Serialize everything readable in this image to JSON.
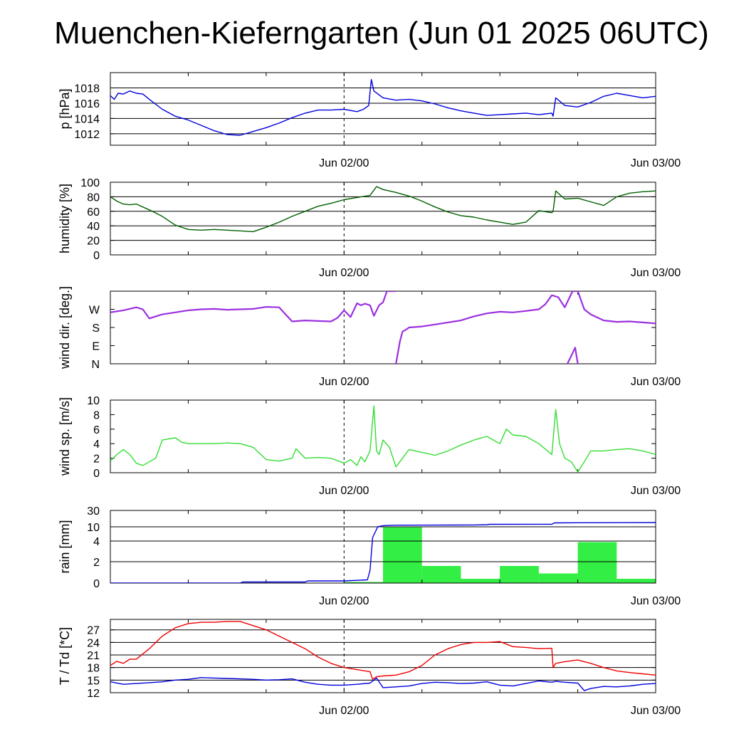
{
  "title": "Muenchen-Kieferngarten (Jun 01 2025 06UTC)",
  "colors": {
    "pressure": "#0000dd",
    "humidity": "#005f00",
    "wind_dir": "#9b30e0",
    "wind_speed": "#33dd33",
    "rain_bar": "#33ee44",
    "rain_cum": "#0000dd",
    "temperature": "#ee0000",
    "dewpoint": "#0000dd"
  },
  "chart_data": [
    {
      "id": "pressure",
      "type": "line",
      "ylabel": "p [hPa]",
      "ylim": [
        1010.5,
        1020
      ],
      "yticks": [
        1012,
        1014,
        1016,
        1018
      ],
      "ytick_labels": [
        "1012",
        "1014",
        "1016",
        "1018"
      ],
      "xlim": [
        0,
        42
      ],
      "xticks": [
        18,
        42
      ],
      "xtick_labels": [
        "Jun 02/00",
        "Jun 03/00"
      ],
      "grid": true,
      "series": [
        {
          "color_key": "pressure",
          "x": [
            0,
            0.3,
            0.6,
            1,
            1.5,
            2,
            2.5,
            3,
            4,
            5,
            6,
            7,
            8,
            9,
            10,
            11,
            12,
            13,
            14,
            15,
            16,
            17,
            18,
            19,
            19.5,
            19.9,
            20.1,
            20.3,
            21,
            22,
            23,
            24,
            25,
            26,
            27,
            28,
            29,
            30,
            31,
            32,
            33,
            34,
            34.1,
            34.3,
            35,
            36,
            37,
            38,
            39,
            40,
            41,
            42
          ],
          "y": [
            1017,
            1016.5,
            1017.3,
            1017.2,
            1017.6,
            1017.3,
            1017.2,
            1016.5,
            1015.2,
            1014.3,
            1013.8,
            1013.1,
            1012.4,
            1011.9,
            1011.8,
            1012.3,
            1012.8,
            1013.4,
            1014.1,
            1014.7,
            1015.1,
            1015.1,
            1015.2,
            1014.9,
            1015.2,
            1015.7,
            1019.1,
            1017.6,
            1016.7,
            1016.4,
            1016.5,
            1016.3,
            1015.9,
            1015.4,
            1015,
            1014.7,
            1014.4,
            1014.5,
            1014.6,
            1014.7,
            1014.5,
            1014.7,
            1014.3,
            1016.7,
            1015.7,
            1015.5,
            1016.1,
            1016.9,
            1017.3,
            1017,
            1016.7,
            1016.9
          ]
        }
      ]
    },
    {
      "id": "humidity",
      "type": "line",
      "ylabel": "humidity [%]",
      "ylim": [
        0,
        100
      ],
      "yticks": [
        0,
        20,
        40,
        60,
        80,
        100
      ],
      "ytick_labels": [
        "0",
        "20",
        "40",
        "60",
        "80",
        "100"
      ],
      "xlim": [
        0,
        42
      ],
      "xticks": [
        18,
        42
      ],
      "xtick_labels": [
        "Jun 02/00",
        "Jun 03/00"
      ],
      "grid": true,
      "series": [
        {
          "color_key": "humidity",
          "x": [
            0,
            0.5,
            1,
            1.5,
            2,
            3,
            4,
            5,
            6,
            7,
            8,
            9,
            10,
            11,
            12,
            13,
            14,
            15,
            16,
            17,
            18,
            19,
            20,
            20.5,
            21,
            22,
            23,
            24,
            25,
            26,
            27,
            28,
            29,
            30,
            31,
            32,
            33,
            34,
            34.1,
            34.3,
            35,
            36,
            37,
            38,
            39,
            40,
            41,
            42
          ],
          "y": [
            80,
            74,
            70,
            69,
            70,
            62,
            53,
            41,
            35,
            34,
            35,
            34,
            33,
            32,
            38,
            45,
            53,
            60,
            67,
            71,
            76,
            79,
            82,
            94,
            90,
            86,
            81,
            74,
            66,
            59,
            54,
            52,
            48,
            45,
            42,
            45,
            61,
            58,
            60,
            88,
            77,
            78,
            73,
            68,
            80,
            85,
            87,
            88
          ]
        }
      ]
    },
    {
      "id": "wind_direction",
      "type": "scatter",
      "ylabel": "wind dir. [deg.]",
      "ylim": [
        0,
        360
      ],
      "yticks": [
        0,
        90,
        180,
        270
      ],
      "ytick_labels": [
        "N",
        "E",
        "S",
        "W"
      ],
      "xlim": [
        0,
        42
      ],
      "xticks": [
        18,
        42
      ],
      "xtick_labels": [
        "Jun 02/00",
        "Jun 03/00"
      ],
      "grid": false,
      "series": [
        {
          "color_key": "wind_dir",
          "x": [
            0,
            1,
            2,
            2.5,
            3,
            4,
            5,
            6,
            7,
            8,
            9,
            10,
            11,
            12,
            13,
            14,
            15,
            16,
            17,
            17.5,
            18,
            18.5,
            19,
            19.3,
            19.6,
            20,
            20.3,
            20.7,
            21,
            21.3,
            21.7,
            22
          ],
          "y": [
            255,
            265,
            280,
            270,
            225,
            245,
            255,
            265,
            270,
            272,
            268,
            270,
            272,
            282,
            280,
            210,
            215,
            212,
            210,
            228,
            265,
            232,
            300,
            290,
            298,
            290,
            238,
            290,
            305,
            360,
            360,
            360
          ]
        },
        {
          "color_key": "wind_dir",
          "x": [
            22,
            22.3,
            22.5,
            22.8,
            23,
            24,
            25,
            26,
            27,
            28,
            29,
            30,
            31,
            32,
            33,
            33.5,
            34,
            34.5,
            35,
            35.6,
            36,
            36.5,
            37,
            38,
            39,
            40,
            41,
            42
          ],
          "y": [
            0,
            110,
            160,
            170,
            180,
            185,
            195,
            205,
            215,
            235,
            250,
            258,
            255,
            262,
            270,
            295,
            340,
            330,
            280,
            360,
            360,
            270,
            245,
            215,
            208,
            210,
            205,
            200
          ]
        },
        {
          "color_key": "wind_dir",
          "x": [
            35.2,
            35.5,
            35.8,
            36
          ],
          "y": [
            0,
            40,
            80,
            0
          ]
        }
      ]
    },
    {
      "id": "wind_speed",
      "type": "line",
      "ylabel": "wind sp. [m/s]",
      "ylim": [
        0,
        10
      ],
      "yticks": [
        0,
        2,
        4,
        6,
        8,
        10
      ],
      "ytick_labels": [
        "0",
        "2",
        "4",
        "6",
        "8",
        "10"
      ],
      "xlim": [
        0,
        42
      ],
      "xticks": [
        18,
        42
      ],
      "xtick_labels": [
        "Jun 02/00",
        "Jun 03/00"
      ],
      "grid": false,
      "series": [
        {
          "color_key": "wind_speed",
          "x": [
            0,
            0.5,
            1,
            1.5,
            2,
            2.5,
            3,
            3.5,
            4,
            5,
            5.5,
            6,
            7,
            8,
            9,
            10,
            11,
            12,
            13,
            14,
            14.3,
            15,
            16,
            17,
            18,
            18.5,
            19,
            19.3,
            19.6,
            20,
            20.3,
            20.5,
            20.7,
            21,
            21.5,
            22,
            22.5,
            23,
            23.5,
            24,
            25,
            26,
            27,
            28,
            29,
            30,
            30.5,
            31,
            32,
            33,
            34,
            34.3,
            34.6,
            35,
            35.5,
            36,
            36.5,
            37,
            38,
            39,
            40,
            41,
            42
          ],
          "y": [
            1.6,
            2.5,
            3.2,
            2.5,
            1.3,
            1.0,
            1.5,
            2.0,
            4.5,
            4.8,
            4.2,
            4.0,
            4.0,
            4.0,
            4.1,
            4.0,
            3.5,
            1.8,
            1.6,
            2.0,
            3.3,
            2.0,
            2.1,
            2.0,
            1.3,
            1.8,
            1.0,
            2.2,
            1.5,
            3.0,
            9.2,
            3.0,
            2.5,
            4.5,
            3.5,
            0.8,
            2.0,
            3.2,
            3.0,
            2.8,
            2.4,
            3.0,
            3.8,
            4.5,
            5.0,
            4.0,
            6.0,
            5.2,
            5.0,
            4.0,
            2.5,
            8.7,
            4.0,
            2.0,
            1.5,
            0.1,
            1.5,
            3.0,
            3.0,
            3.2,
            3.3,
            3.0,
            2.5
          ]
        }
      ]
    },
    {
      "id": "rain",
      "type": "bar",
      "ylabel": "rain [mm]",
      "yscale": "custom",
      "ytick_values": [
        0,
        2,
        4,
        10,
        30
      ],
      "ytick_labels": [
        "0",
        "2",
        "4",
        "10",
        "30"
      ],
      "xlim": [
        0,
        42
      ],
      "xticks": [
        18,
        42
      ],
      "xtick_labels": [
        "Jun 02/00",
        "Jun 03/00"
      ],
      "grid": true,
      "bars": {
        "color_key": "rain_bar",
        "x_start": [
          18,
          21,
          24,
          27,
          30,
          33,
          36,
          39
        ],
        "x_end": [
          21,
          24,
          27,
          30,
          33,
          36,
          39,
          42
        ],
        "values": [
          0.1,
          9.8,
          1.6,
          0.4,
          1.6,
          0.9,
          3.9,
          0.4
        ]
      },
      "series": [
        {
          "color_key": "rain_cum",
          "x": [
            0,
            10,
            10.2,
            15,
            15.2,
            18,
            19.8,
            20,
            20.2,
            20.6,
            21,
            21.5,
            22,
            25,
            28,
            29,
            29.2,
            34,
            34.2,
            36,
            42
          ],
          "y": [
            0,
            0,
            0.1,
            0.1,
            0.2,
            0.2,
            0.3,
            1.2,
            5.5,
            10.2,
            11.4,
            11.8,
            12.0,
            12.1,
            12.3,
            12.6,
            13.0,
            13.1,
            14.8,
            15.0,
            15.2
          ]
        }
      ]
    },
    {
      "id": "temperature",
      "type": "line",
      "ylabel": "T / Td [*C]",
      "ylim": [
        12,
        29.5
      ],
      "yticks": [
        12,
        15,
        18,
        21,
        24,
        27
      ],
      "ytick_labels": [
        "12",
        "15",
        "18",
        "21",
        "24",
        "27"
      ],
      "xlim": [
        0,
        42
      ],
      "xticks": [
        18,
        42
      ],
      "xtick_labels": [
        "Jun 02/00",
        "Jun 03/00"
      ],
      "grid": true,
      "series": [
        {
          "name": "T",
          "color_key": "temperature",
          "x": [
            0,
            0.5,
            1,
            1.5,
            2,
            3,
            4,
            5,
            6,
            7,
            8,
            9,
            10,
            11,
            12,
            13,
            14,
            15,
            16,
            17,
            18,
            19,
            20,
            20.2,
            20.5,
            21,
            22,
            23,
            24,
            25,
            26,
            27,
            28,
            29,
            30,
            31,
            32,
            33,
            34,
            34.1,
            34.3,
            35,
            36,
            37,
            38,
            39,
            40,
            41,
            42
          ],
          "y": [
            18.5,
            19.5,
            19.0,
            20.0,
            20.0,
            22.5,
            25.5,
            27.5,
            28.5,
            28.8,
            28.8,
            29.0,
            29.0,
            28.0,
            27.0,
            25.5,
            24.0,
            22.5,
            20.5,
            19.0,
            18.0,
            17.5,
            17.0,
            15.2,
            15.8,
            16.0,
            16.2,
            17.0,
            18.5,
            21.0,
            22.5,
            23.5,
            24.0,
            24.0,
            24.2,
            23.0,
            22.8,
            22.5,
            22.6,
            18.0,
            19.0,
            19.4,
            19.8,
            19.0,
            18.0,
            17.2,
            16.8,
            16.5,
            16.2
          ]
        },
        {
          "name": "Td",
          "color_key": "dewpoint",
          "x": [
            0,
            1,
            2,
            3,
            4,
            5,
            6,
            7,
            8,
            9,
            10,
            11,
            12,
            13,
            14,
            15,
            16,
            17,
            18,
            19,
            20,
            20.5,
            21,
            22,
            23,
            24,
            25,
            26,
            27,
            28,
            29,
            30,
            31,
            32,
            33,
            34,
            34.3,
            35,
            36,
            36.5,
            37,
            38,
            39,
            40,
            41,
            42
          ],
          "y": [
            14.6,
            14.0,
            14.2,
            14.4,
            14.6,
            15.0,
            15.2,
            15.6,
            15.5,
            15.4,
            15.3,
            15.2,
            15.0,
            15.1,
            15.3,
            14.5,
            14.0,
            13.8,
            13.8,
            14.0,
            14.3,
            15.5,
            13.2,
            13.4,
            13.6,
            14.2,
            14.5,
            14.4,
            14.2,
            14.3,
            14.6,
            13.8,
            13.6,
            14.2,
            14.8,
            14.5,
            14.7,
            14.5,
            14.3,
            12.5,
            13.0,
            13.5,
            13.4,
            13.6,
            14.0,
            14.2
          ]
        }
      ]
    }
  ]
}
